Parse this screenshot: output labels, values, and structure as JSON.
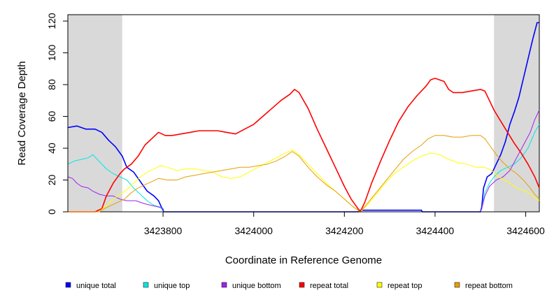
{
  "chart_data": {
    "type": "line",
    "xlabel": "Coordinate in Reference Genome",
    "ylabel": "Read Coverage Depth",
    "xlim": [
      3423590,
      3424630
    ],
    "ylim": [
      0,
      124
    ],
    "x_ticks": [
      3423800,
      3424000,
      3424200,
      3424400,
      3424600
    ],
    "y_ticks": [
      0,
      20,
      40,
      60,
      80,
      100,
      120
    ],
    "shaded_regions": [
      [
        3423590,
        3423710
      ],
      [
        3424530,
        3424630
      ]
    ],
    "grid": false,
    "legend_position": "bottom",
    "series": [
      {
        "name": "unique total",
        "color": "#0000ff",
        "points": [
          [
            3423590,
            53
          ],
          [
            3423610,
            54
          ],
          [
            3423630,
            52
          ],
          [
            3423650,
            52
          ],
          [
            3423665,
            50
          ],
          [
            3423680,
            45
          ],
          [
            3423695,
            41
          ],
          [
            3423710,
            35
          ],
          [
            3423720,
            28
          ],
          [
            3423735,
            25
          ],
          [
            3423750,
            19
          ],
          [
            3423765,
            13
          ],
          [
            3423780,
            10
          ],
          [
            3423790,
            7
          ],
          [
            3423798,
            2
          ],
          [
            3423802,
            0
          ],
          [
            3424230,
            0
          ],
          [
            3424234,
            1
          ],
          [
            3424370,
            1
          ],
          [
            3424372,
            0
          ],
          [
            3424500,
            0
          ],
          [
            3424503,
            3
          ],
          [
            3424507,
            15
          ],
          [
            3424515,
            22
          ],
          [
            3424525,
            24
          ],
          [
            3424535,
            30
          ],
          [
            3424545,
            36
          ],
          [
            3424555,
            44
          ],
          [
            3424565,
            55
          ],
          [
            3424575,
            63
          ],
          [
            3424585,
            72
          ],
          [
            3424595,
            84
          ],
          [
            3424605,
            96
          ],
          [
            3424615,
            108
          ],
          [
            3424625,
            119
          ],
          [
            3424630,
            119
          ]
        ]
      },
      {
        "name": "unique top",
        "color": "#00e5e5",
        "points": [
          [
            3423590,
            30
          ],
          [
            3423605,
            32
          ],
          [
            3423620,
            33
          ],
          [
            3423635,
            34
          ],
          [
            3423645,
            36
          ],
          [
            3423655,
            33
          ],
          [
            3423665,
            30
          ],
          [
            3423675,
            27
          ],
          [
            3423690,
            24
          ],
          [
            3423705,
            22
          ],
          [
            3423720,
            20
          ],
          [
            3423735,
            15
          ],
          [
            3423750,
            11
          ],
          [
            3423765,
            7
          ],
          [
            3423780,
            4
          ],
          [
            3423795,
            3
          ],
          [
            3423800,
            0
          ],
          [
            3424500,
            0
          ],
          [
            3424503,
            2
          ],
          [
            3424510,
            12
          ],
          [
            3424520,
            18
          ],
          [
            3424530,
            22
          ],
          [
            3424545,
            26
          ],
          [
            3424560,
            28
          ],
          [
            3424575,
            30
          ],
          [
            3424590,
            34
          ],
          [
            3424605,
            40
          ],
          [
            3424620,
            50
          ],
          [
            3424630,
            55
          ]
        ]
      },
      {
        "name": "unique bottom",
        "color": "#a020f0",
        "points": [
          [
            3423590,
            22
          ],
          [
            3423600,
            21
          ],
          [
            3423610,
            18
          ],
          [
            3423620,
            16
          ],
          [
            3423635,
            15
          ],
          [
            3423645,
            13
          ],
          [
            3423660,
            11
          ],
          [
            3423675,
            10
          ],
          [
            3423690,
            10
          ],
          [
            3423705,
            8
          ],
          [
            3423720,
            7
          ],
          [
            3423740,
            7
          ],
          [
            3423760,
            5
          ],
          [
            3423775,
            4
          ],
          [
            3423790,
            3
          ],
          [
            3423800,
            2
          ],
          [
            3423802,
            0
          ],
          [
            3424500,
            0
          ],
          [
            3424503,
            2
          ],
          [
            3424510,
            10
          ],
          [
            3424520,
            16
          ],
          [
            3424535,
            20
          ],
          [
            3424550,
            22
          ],
          [
            3424565,
            26
          ],
          [
            3424580,
            34
          ],
          [
            3424595,
            42
          ],
          [
            3424610,
            50
          ],
          [
            3424620,
            58
          ],
          [
            3424630,
            64
          ]
        ]
      },
      {
        "name": "repeat total",
        "color": "#ff0000",
        "points": [
          [
            3423590,
            0
          ],
          [
            3423650,
            0
          ],
          [
            3423665,
            2
          ],
          [
            3423675,
            10
          ],
          [
            3423690,
            18
          ],
          [
            3423705,
            24
          ],
          [
            3423715,
            27
          ],
          [
            3423730,
            30
          ],
          [
            3423745,
            35
          ],
          [
            3423760,
            42
          ],
          [
            3423775,
            46
          ],
          [
            3423790,
            50
          ],
          [
            3423805,
            48
          ],
          [
            3423820,
            48
          ],
          [
            3423840,
            49
          ],
          [
            3423860,
            50
          ],
          [
            3423880,
            51
          ],
          [
            3423900,
            51
          ],
          [
            3423920,
            51
          ],
          [
            3423940,
            50
          ],
          [
            3423960,
            49
          ],
          [
            3423980,
            52
          ],
          [
            3424000,
            55
          ],
          [
            3424020,
            60
          ],
          [
            3424040,
            65
          ],
          [
            3424060,
            70
          ],
          [
            3424080,
            74
          ],
          [
            3424090,
            77
          ],
          [
            3424100,
            75
          ],
          [
            3424120,
            65
          ],
          [
            3424140,
            52
          ],
          [
            3424160,
            40
          ],
          [
            3424180,
            28
          ],
          [
            3424200,
            16
          ],
          [
            3424215,
            8
          ],
          [
            3424230,
            2
          ],
          [
            3424235,
            0
          ],
          [
            3424245,
            6
          ],
          [
            3424260,
            18
          ],
          [
            3424280,
            32
          ],
          [
            3424300,
            45
          ],
          [
            3424320,
            57
          ],
          [
            3424340,
            66
          ],
          [
            3424360,
            73
          ],
          [
            3424380,
            79
          ],
          [
            3424390,
            83
          ],
          [
            3424400,
            84
          ],
          [
            3424420,
            82
          ],
          [
            3424430,
            77
          ],
          [
            3424440,
            75
          ],
          [
            3424460,
            75
          ],
          [
            3424480,
            76
          ],
          [
            3424500,
            77
          ],
          [
            3424510,
            76
          ],
          [
            3424520,
            70
          ],
          [
            3424530,
            64
          ],
          [
            3424545,
            57
          ],
          [
            3424560,
            50
          ],
          [
            3424575,
            43
          ],
          [
            3424590,
            37
          ],
          [
            3424605,
            30
          ],
          [
            3424620,
            22
          ],
          [
            3424630,
            15
          ]
        ]
      },
      {
        "name": "repeat top",
        "color": "#ffff00",
        "points": [
          [
            3423590,
            0
          ],
          [
            3423660,
            0
          ],
          [
            3423670,
            3
          ],
          [
            3423680,
            5
          ],
          [
            3423690,
            8
          ],
          [
            3423705,
            11
          ],
          [
            3423720,
            14
          ],
          [
            3423735,
            18
          ],
          [
            3423750,
            22
          ],
          [
            3423765,
            25
          ],
          [
            3423780,
            27
          ],
          [
            3423795,
            29
          ],
          [
            3423810,
            28
          ],
          [
            3423830,
            26
          ],
          [
            3423850,
            27
          ],
          [
            3423870,
            27
          ],
          [
            3423890,
            26
          ],
          [
            3423910,
            25
          ],
          [
            3423930,
            22
          ],
          [
            3423950,
            21
          ],
          [
            3423970,
            22
          ],
          [
            3423990,
            25
          ],
          [
            3424010,
            28
          ],
          [
            3424030,
            31
          ],
          [
            3424050,
            34
          ],
          [
            3424070,
            37
          ],
          [
            3424085,
            39
          ],
          [
            3424100,
            36
          ],
          [
            3424120,
            30
          ],
          [
            3424140,
            24
          ],
          [
            3424160,
            18
          ],
          [
            3424180,
            13
          ],
          [
            3424200,
            8
          ],
          [
            3424220,
            3
          ],
          [
            3424235,
            0
          ],
          [
            3424250,
            4
          ],
          [
            3424270,
            11
          ],
          [
            3424290,
            18
          ],
          [
            3424310,
            24
          ],
          [
            3424330,
            28
          ],
          [
            3424350,
            32
          ],
          [
            3424370,
            35
          ],
          [
            3424390,
            37
          ],
          [
            3424410,
            36
          ],
          [
            3424430,
            33
          ],
          [
            3424450,
            31
          ],
          [
            3424470,
            30
          ],
          [
            3424490,
            28
          ],
          [
            3424510,
            28
          ],
          [
            3424525,
            26
          ],
          [
            3424540,
            22
          ],
          [
            3424560,
            19
          ],
          [
            3424580,
            15
          ],
          [
            3424600,
            13
          ],
          [
            3424615,
            10
          ],
          [
            3424630,
            7
          ]
        ]
      },
      {
        "name": "repeat bottom",
        "color": "#e69f00",
        "points": [
          [
            3423590,
            0
          ],
          [
            3423660,
            0
          ],
          [
            3423670,
            2
          ],
          [
            3423685,
            4
          ],
          [
            3423700,
            6
          ],
          [
            3423715,
            8
          ],
          [
            3423730,
            12
          ],
          [
            3423745,
            15
          ],
          [
            3423760,
            17
          ],
          [
            3423775,
            19
          ],
          [
            3423790,
            21
          ],
          [
            3423810,
            20
          ],
          [
            3423830,
            20
          ],
          [
            3423850,
            22
          ],
          [
            3423870,
            23
          ],
          [
            3423890,
            24
          ],
          [
            3423910,
            25
          ],
          [
            3423930,
            26
          ],
          [
            3423950,
            27
          ],
          [
            3423970,
            28
          ],
          [
            3423990,
            28
          ],
          [
            3424010,
            29
          ],
          [
            3424030,
            30
          ],
          [
            3424050,
            32
          ],
          [
            3424070,
            35
          ],
          [
            3424085,
            38
          ],
          [
            3424100,
            35
          ],
          [
            3424120,
            28
          ],
          [
            3424140,
            22
          ],
          [
            3424160,
            17
          ],
          [
            3424180,
            13
          ],
          [
            3424200,
            8
          ],
          [
            3424220,
            3
          ],
          [
            3424235,
            0
          ],
          [
            3424250,
            5
          ],
          [
            3424270,
            12
          ],
          [
            3424290,
            19
          ],
          [
            3424310,
            26
          ],
          [
            3424330,
            33
          ],
          [
            3424350,
            38
          ],
          [
            3424370,
            42
          ],
          [
            3424385,
            46
          ],
          [
            3424400,
            48
          ],
          [
            3424420,
            48
          ],
          [
            3424440,
            47
          ],
          [
            3424460,
            47
          ],
          [
            3424480,
            48
          ],
          [
            3424500,
            48
          ],
          [
            3424510,
            46
          ],
          [
            3424520,
            42
          ],
          [
            3424535,
            36
          ],
          [
            3424550,
            31
          ],
          [
            3424565,
            27
          ],
          [
            3424580,
            24
          ],
          [
            3424595,
            20
          ],
          [
            3424610,
            15
          ],
          [
            3424620,
            11
          ],
          [
            3424630,
            8
          ]
        ]
      }
    ]
  }
}
